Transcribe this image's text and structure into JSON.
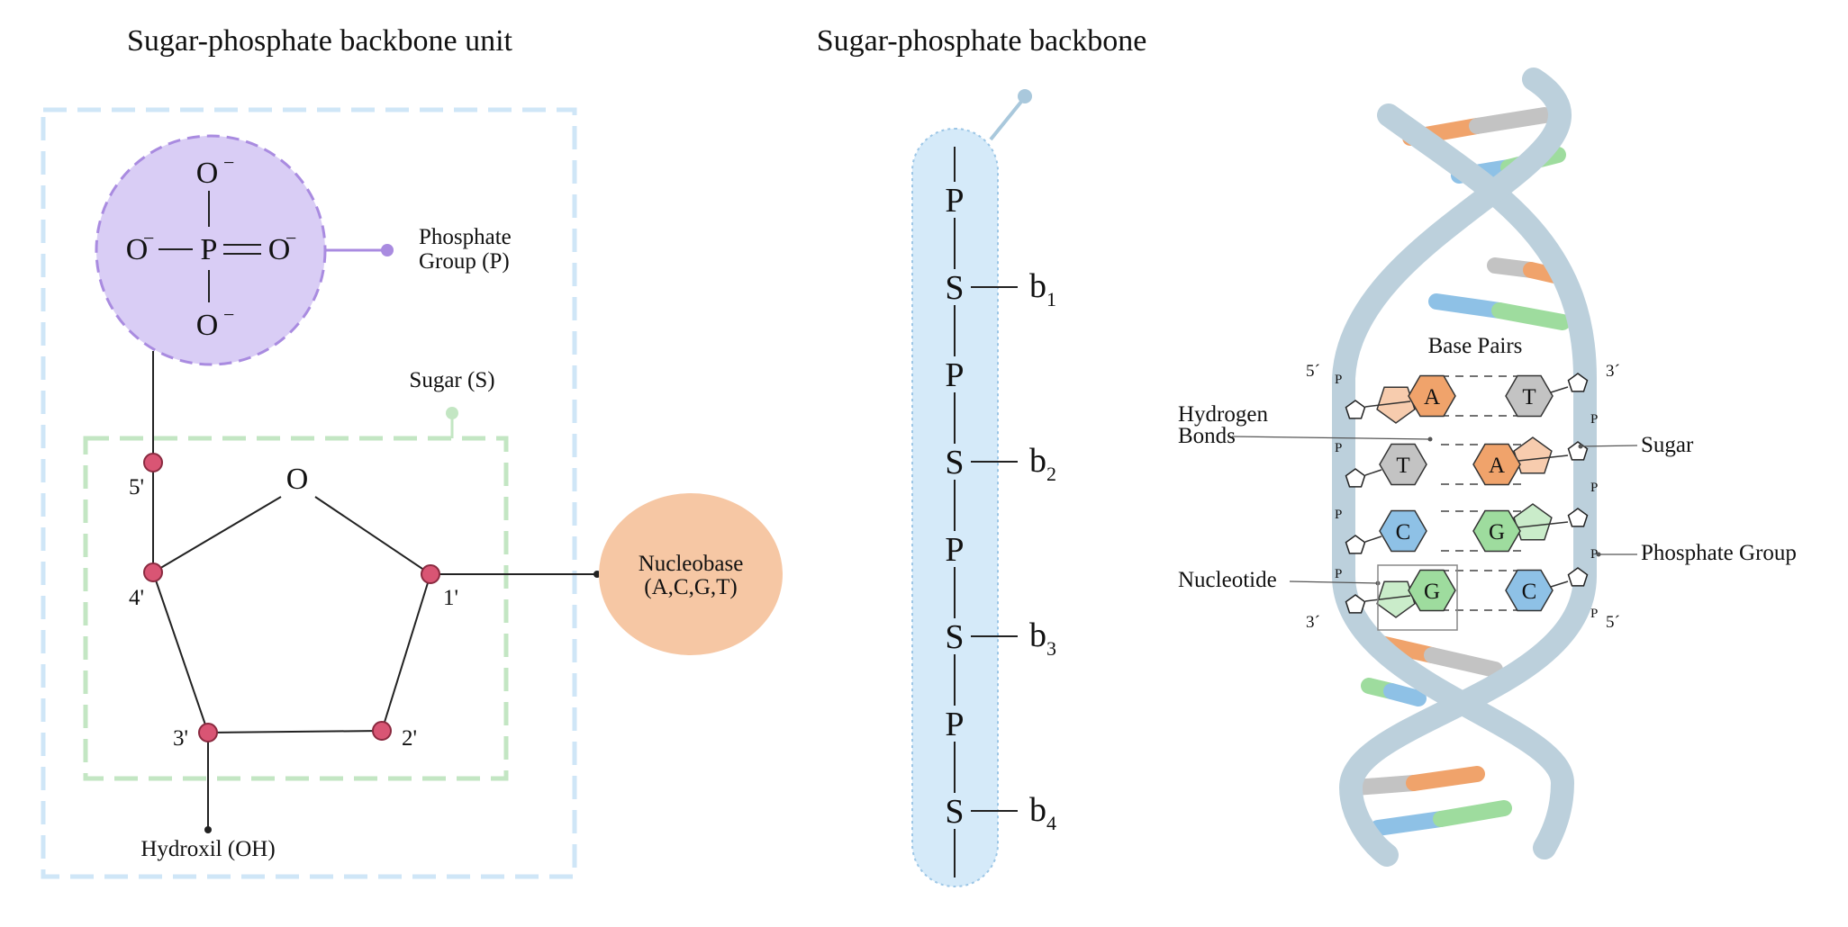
{
  "titles": {
    "unit": "Sugar-phosphate backbone unit",
    "backbone": "Sugar-phosphate backbone"
  },
  "unit_panel": {
    "phosphate": {
      "atom_P": "P",
      "atom_O": "O",
      "charge": "−",
      "label_line1": "Phosphate",
      "label_line2": "Group (P)"
    },
    "sugar": {
      "label": "Sugar (S)",
      "ring_oxygen": "O",
      "carbons": [
        "1'",
        "2'",
        "3'",
        "4'",
        "5'"
      ]
    },
    "nucleobase": {
      "line1": "Nucleobase",
      "line2": "(A,C,G,T)"
    },
    "hydroxyl": "Hydroxil (OH)"
  },
  "backbone_panel": {
    "chain": [
      "P",
      "S",
      "P",
      "S",
      "P",
      "S",
      "P",
      "S"
    ],
    "bases": [
      {
        "letter": "b",
        "index": "1"
      },
      {
        "letter": "b",
        "index": "2"
      },
      {
        "letter": "b",
        "index": "3"
      },
      {
        "letter": "b",
        "index": "4"
      }
    ]
  },
  "helix_panel": {
    "base_pairs_label": "Base Pairs",
    "hydrogen_line1": "Hydrogen",
    "hydrogen_line2": "Bonds",
    "sugar_label": "Sugar",
    "phosphate_label": "Phosphate Group",
    "nucleotide_label": "Nucleotide",
    "prime_5": "5´",
    "prime_3": "3´",
    "phosphate_letter": "P",
    "pairs": [
      {
        "left": "A",
        "right": "T"
      },
      {
        "left": "T",
        "right": "A"
      },
      {
        "left": "C",
        "right": "G"
      },
      {
        "left": "G",
        "right": "C"
      }
    ]
  },
  "colors": {
    "phosphate_fill": "#d9cdf5",
    "phosphate_stroke": "#a98be0",
    "unit_box": "#cfe6f7",
    "sugar_box": "#c3e6c3",
    "carbon_node": "#d95574",
    "nucleobase": "#f6c7a4",
    "backbone_fill": "#d5eaf9",
    "helix_strand": "#bcd0dc",
    "A": "#f0a36b",
    "T": "#c3c3c3",
    "C": "#8ec1e6",
    "G": "#9edc9e"
  }
}
